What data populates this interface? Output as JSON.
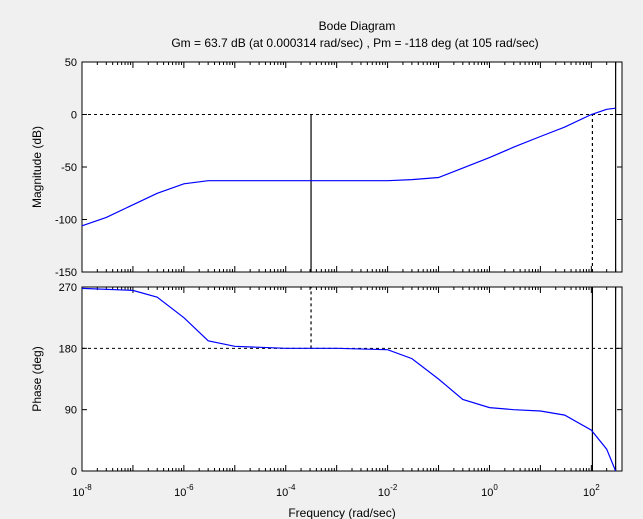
{
  "chart_data": {
    "type": "line",
    "title": "Bode Diagram",
    "subtitle": "Gm = 63.7 dB (at 0.000314 rad/sec) ,  Pm = -118 deg (at 105 rad/sec)",
    "xlabel": "Frequency  (rad/sec)",
    "x_scale": "log",
    "x_range": [
      1e-08,
      400
    ],
    "x_ticks": [
      {
        "base": "10",
        "exp": "-8",
        "value": 1e-08
      },
      {
        "base": "10",
        "exp": "-6",
        "value": 1e-06
      },
      {
        "base": "10",
        "exp": "-4",
        "value": 0.0001
      },
      {
        "base": "10",
        "exp": "-2",
        "value": 0.01
      },
      {
        "base": "10",
        "exp": "0",
        "value": 1
      },
      {
        "base": "10",
        "exp": "2",
        "value": 100
      }
    ],
    "line_color": "#0000ff",
    "panels": [
      {
        "id": "magnitude",
        "ylabel": "Magnitude (dB)",
        "ylim": [
          -150,
          50
        ],
        "y_ticks": [
          50,
          0,
          -50,
          -100,
          -150
        ],
        "reference_line": 0,
        "series": [
          {
            "x": [
              1e-08,
              3e-08,
              1e-07,
              3e-07,
              1e-06,
              3e-06,
              1e-05,
              0.0001,
              0.001,
              0.01,
              0.03,
              0.1,
              0.3,
              1,
              3,
              10,
              30,
              100,
              200,
              300
            ],
            "y": [
              -106,
              -98,
              -86,
              -75,
              -66,
              -63,
              -63,
              -63,
              -63,
              -63,
              -62,
              -60,
              -51,
              -41,
              -31,
              -21,
              -12,
              0,
              5,
              6
            ]
          }
        ],
        "markers": [
          {
            "x": 0.000314,
            "from": -150,
            "to": 0,
            "style": "solid"
          },
          {
            "x": 105,
            "from": -150,
            "to": 0,
            "style": "dashed"
          },
          {
            "x": 300,
            "from": -150,
            "to": 50,
            "style": "solid"
          }
        ]
      },
      {
        "id": "phase",
        "ylabel": "Phase (deg)",
        "ylim": [
          0,
          270
        ],
        "y_ticks": [
          270,
          180,
          90,
          0
        ],
        "reference_line": 180,
        "series": [
          {
            "x": [
              1e-08,
              1e-07,
              3e-07,
              1e-06,
              3e-06,
              1e-05,
              0.0001,
              0.001,
              0.01,
              0.03,
              0.1,
              0.3,
              1,
              3,
              10,
              30,
              100,
              200,
              300
            ],
            "y": [
              268,
              265,
              255,
              225,
              191,
              183,
              180,
              180,
              178,
              165,
              135,
              105,
              93,
              90,
              88,
              82,
              60,
              32,
              0
            ]
          }
        ],
        "markers": [
          {
            "x": 0.000314,
            "from": 180,
            "to": 270,
            "style": "dashed"
          },
          {
            "x": 105,
            "from": 0,
            "to": 270,
            "style": "solid"
          },
          {
            "x": 300,
            "from": 0,
            "to": 270,
            "style": "solid"
          }
        ]
      }
    ]
  }
}
